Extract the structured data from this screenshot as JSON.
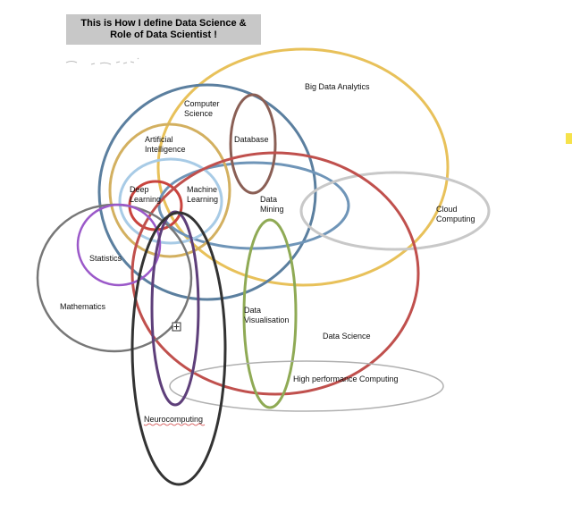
{
  "title": {
    "line1": "This is How I define Data Science &",
    "line2": "Role of Data Scientist !"
  },
  "labels": {
    "big_data": "Big Data Analytics",
    "computer_science_1": "Computer",
    "computer_science_2": "Science",
    "database": "Database",
    "ai_1": "Artificial",
    "ai_2": "Intelligence",
    "deep_1": "Deep",
    "deep_2": "Learning",
    "ml_1": "Machine",
    "ml_2": "Learning",
    "mining_1": "Data",
    "mining_2": "Mining",
    "cloud_1": "Cloud",
    "cloud_2": "Computing",
    "statistics": "Statistics",
    "mathematics": "Mathematics",
    "vis_1": "Data",
    "vis_2": "Visualisation",
    "data_science": "Data Science",
    "hpc": "High performance Computing",
    "neuro": "Neurocomputing"
  },
  "colors": {
    "big_data": "#e8c15a",
    "computer_science": "#5b7f9f",
    "database": "#8a5f55",
    "ai": "#d3b060",
    "ml": "#a8cbe6",
    "deep": "#c9443e",
    "data_science": "#c0504d",
    "cloud": "#c8c8c8",
    "statistics": "#9b59c9",
    "mathematics": "#777777",
    "vis": "#8faa55",
    "hpc": "#b0b0b0",
    "neuro": "#333333",
    "purple_ellipse": "#5e3f7a",
    "accent": "#f6e24a"
  }
}
